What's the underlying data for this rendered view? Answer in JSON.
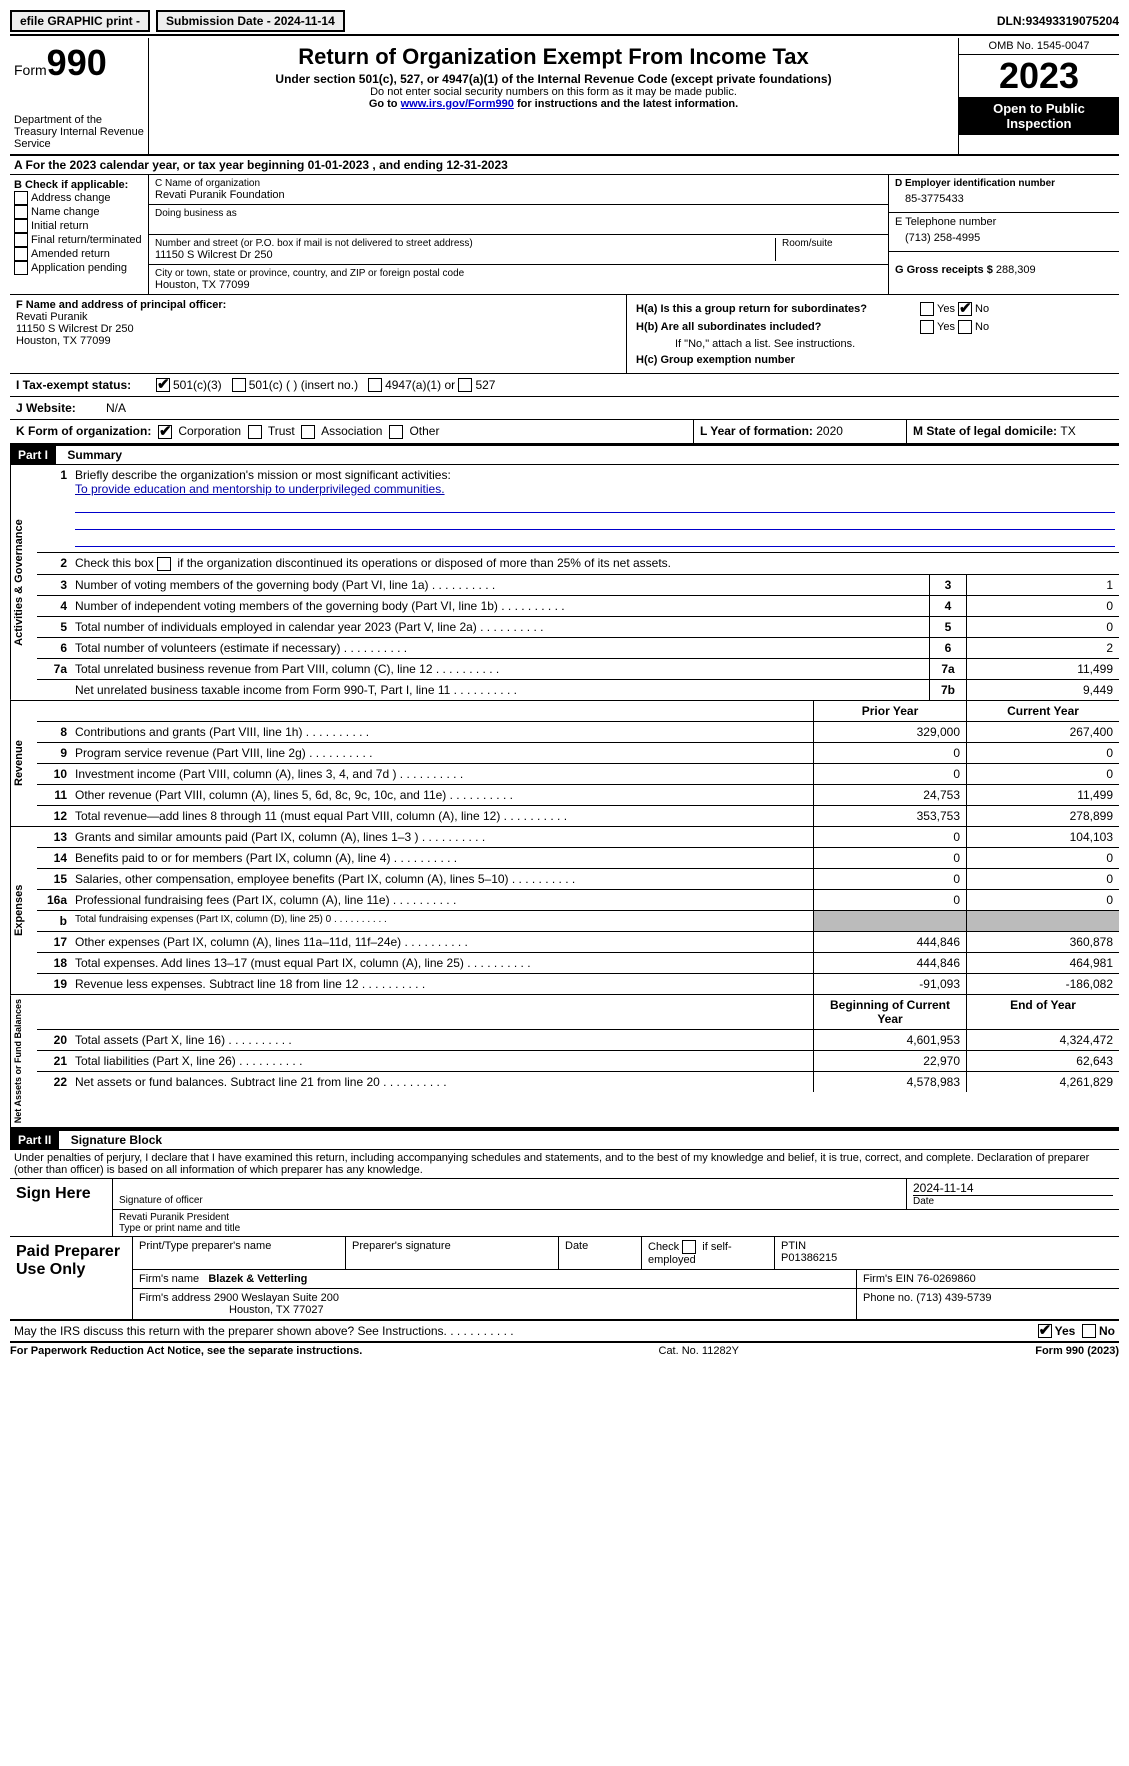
{
  "topbar": {
    "efile": "efile GRAPHIC print - ",
    "submission": "Submission Date - 2024-11-14",
    "dln_label": "DLN: ",
    "dln": "93493319075204"
  },
  "header": {
    "form_word": "Form",
    "form_num": "990",
    "dept": "Department of the Treasury Internal Revenue Service",
    "title": "Return of Organization Exempt From Income Tax",
    "sub": "Under section 501(c), 527, or 4947(a)(1) of the Internal Revenue Code (except private foundations)",
    "note1": "Do not enter social security numbers on this form as it may be made public.",
    "note2": "Go to ",
    "link": "www.irs.gov/Form990",
    "note3": " for instructions and the latest information.",
    "omb": "OMB No. 1545-0047",
    "year": "2023",
    "open": "Open to Public Inspection"
  },
  "row_a": {
    "text": "A For the 2023 calendar year, or tax year beginning ",
    "begin": "01-01-2023",
    "mid": "  , and ending ",
    "end": "12-31-2023"
  },
  "col_b": {
    "title": "B Check if applicable:",
    "items": [
      "Address change",
      "Name change",
      "Initial return",
      "Final return/terminated",
      "Amended return",
      "Application pending"
    ]
  },
  "col_c": {
    "name_label": "C Name of organization",
    "name": "Revati Puranik Foundation",
    "dba_label": "Doing business as",
    "street_label": "Number and street (or P.O. box if mail is not delivered to street address)",
    "street": "11150 S Wilcrest Dr 250",
    "room_label": "Room/suite",
    "city_label": "City or town, state or province, country, and ZIP or foreign postal code",
    "city": "Houston, TX  77099"
  },
  "col_d": {
    "ein_label": "D Employer identification number",
    "ein": "85-3775433",
    "phone_label": "E Telephone number",
    "phone": "(713) 258-4995",
    "gross_label": "G Gross receipts $ ",
    "gross": "288,309"
  },
  "row_f": {
    "label": "F  Name and address of principal officer:",
    "name": "Revati Puranik",
    "addr1": "11150 S Wilcrest Dr 250",
    "addr2": "Houston, TX  77099"
  },
  "row_h": {
    "ha": "H(a)  Is this a group return for subordinates?",
    "hb": "H(b)  Are all subordinates included?",
    "hb_note": "If \"No,\" attach a list. See instructions.",
    "hc": "H(c)  Group exemption number ",
    "yes": "Yes",
    "no": "No"
  },
  "row_i": {
    "label": "I  Tax-exempt status:",
    "opt1": "501(c)(3)",
    "opt2": "501(c) (  ) (insert no.)",
    "opt3": "4947(a)(1) or",
    "opt4": "527"
  },
  "row_j": {
    "label": "J  Website: ",
    "val": "N/A"
  },
  "row_k": {
    "label": "K Form of organization:",
    "opts": [
      "Corporation",
      "Trust",
      "Association",
      "Other"
    ],
    "l_label": "L Year of formation: ",
    "l_val": "2020",
    "m_label": "M State of legal domicile: ",
    "m_val": "TX"
  },
  "part1": {
    "num": "Part I",
    "title": "Summary"
  },
  "mission": {
    "q": "Briefly describe the organization's mission or most significant activities:",
    "a": "To provide education and mentorship to underprivileged communities."
  },
  "gov_rows": [
    {
      "n": "2",
      "d": "Check this box    if the organization discontinued its operations or disposed of more than 25% of its net assets."
    },
    {
      "n": "3",
      "d": "Number of voting members of the governing body (Part VI, line 1a)",
      "box": "3",
      "v": "1"
    },
    {
      "n": "4",
      "d": "Number of independent voting members of the governing body (Part VI, line 1b)",
      "box": "4",
      "v": "0"
    },
    {
      "n": "5",
      "d": "Total number of individuals employed in calendar year 2023 (Part V, line 2a)",
      "box": "5",
      "v": "0"
    },
    {
      "n": "6",
      "d": "Total number of volunteers (estimate if necessary)",
      "box": "6",
      "v": "2"
    },
    {
      "n": "7a",
      "d": "Total unrelated business revenue from Part VIII, column (C), line 12",
      "box": "7a",
      "v": "11,499"
    },
    {
      "n": "",
      "d": "Net unrelated business taxable income from Form 990-T, Part I, line 11",
      "box": "7b",
      "v": "9,449"
    }
  ],
  "rev_hdr": {
    "prior": "Prior Year",
    "curr": "Current Year"
  },
  "rev_rows": [
    {
      "n": "8",
      "d": "Contributions and grants (Part VIII, line 1h)",
      "p": "329,000",
      "c": "267,400"
    },
    {
      "n": "9",
      "d": "Program service revenue (Part VIII, line 2g)",
      "p": "0",
      "c": "0"
    },
    {
      "n": "10",
      "d": "Investment income (Part VIII, column (A), lines 3, 4, and 7d )",
      "p": "0",
      "c": "0"
    },
    {
      "n": "11",
      "d": "Other revenue (Part VIII, column (A), lines 5, 6d, 8c, 9c, 10c, and 11e)",
      "p": "24,753",
      "c": "11,499"
    },
    {
      "n": "12",
      "d": "Total revenue—add lines 8 through 11 (must equal Part VIII, column (A), line 12)",
      "p": "353,753",
      "c": "278,899"
    }
  ],
  "exp_rows": [
    {
      "n": "13",
      "d": "Grants and similar amounts paid (Part IX, column (A), lines 1–3 )",
      "p": "0",
      "c": "104,103"
    },
    {
      "n": "14",
      "d": "Benefits paid to or for members (Part IX, column (A), line 4)",
      "p": "0",
      "c": "0"
    },
    {
      "n": "15",
      "d": "Salaries, other compensation, employee benefits (Part IX, column (A), lines 5–10)",
      "p": "0",
      "c": "0"
    },
    {
      "n": "16a",
      "d": "Professional fundraising fees (Part IX, column (A), line 11e)",
      "p": "0",
      "c": "0"
    },
    {
      "n": "b",
      "d": "Total fundraising expenses (Part IX, column (D), line 25) 0",
      "p": "",
      "c": "",
      "shade": true,
      "small": true
    },
    {
      "n": "17",
      "d": "Other expenses (Part IX, column (A), lines 11a–11d, 11f–24e)",
      "p": "444,846",
      "c": "360,878"
    },
    {
      "n": "18",
      "d": "Total expenses. Add lines 13–17 (must equal Part IX, column (A), line 25)",
      "p": "444,846",
      "c": "464,981"
    },
    {
      "n": "19",
      "d": "Revenue less expenses. Subtract line 18 from line 12",
      "p": "-91,093",
      "c": "-186,082"
    }
  ],
  "na_hdr": {
    "beg": "Beginning of Current Year",
    "end": "End of Year"
  },
  "na_rows": [
    {
      "n": "20",
      "d": "Total assets (Part X, line 16)",
      "p": "4,601,953",
      "c": "4,324,472"
    },
    {
      "n": "21",
      "d": "Total liabilities (Part X, line 26)",
      "p": "22,970",
      "c": "62,643"
    },
    {
      "n": "22",
      "d": "Net assets or fund balances. Subtract line 21 from line 20",
      "p": "4,578,983",
      "c": "4,261,829"
    }
  ],
  "vert": {
    "gov": "Activities & Governance",
    "rev": "Revenue",
    "exp": "Expenses",
    "na": "Net Assets or Fund Balances"
  },
  "part2": {
    "num": "Part II",
    "title": "Signature Block"
  },
  "penalty": "Under penalties of perjury, I declare that I have examined this return, including accompanying schedules and statements, and to the best of my knowledge and belief, it is true, correct, and complete. Declaration of preparer (other than officer) is based on all information of which preparer has any knowledge.",
  "sign": {
    "here": "Sign Here",
    "sig_label": "Signature of officer",
    "officer": "Revati Puranik  President",
    "type_label": "Type or print name and title",
    "date_label": "Date",
    "date": "2024-11-14"
  },
  "prep": {
    "title": "Paid Preparer Use Only",
    "name_label": "Print/Type preparer's name",
    "sig_label": "Preparer's signature",
    "date_label": "Date",
    "check_label": "Check         if self-employed",
    "ptin_label": "PTIN",
    "ptin": "P01386215",
    "firm_name_label": "Firm's name   ",
    "firm_name": "Blazek & Vetterling",
    "firm_ein_label": "Firm's EIN  ",
    "firm_ein": "76-0269860",
    "firm_addr_label": "Firm's address ",
    "firm_addr1": "2900 Weslayan Suite 200",
    "firm_addr2": "Houston, TX  77027",
    "phone_label": "Phone no. ",
    "phone": "(713) 439-5739"
  },
  "discuss": {
    "q": "May the IRS discuss this return with the preparer shown above? See Instructions.",
    "yes": "Yes",
    "no": "No"
  },
  "footer": {
    "left": "For Paperwork Reduction Act Notice, see the separate instructions.",
    "mid": "Cat. No. 11282Y",
    "right_a": "Form ",
    "right_b": "990",
    "right_c": " (2023)"
  }
}
